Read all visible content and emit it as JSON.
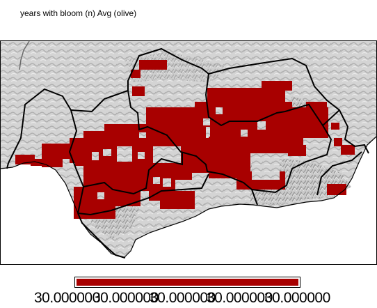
{
  "title": "years with bloom (n) Avg (olive)",
  "colors": {
    "bloom": "#a80000",
    "relief_light": "#d9d9d9",
    "relief_dark": "#9c9c9c",
    "sea": "#ffffff",
    "border": "#000000"
  },
  "legend": {
    "labels": [
      "30.000000",
      "30.000000",
      "30.000000",
      "30.000000",
      "30.000000"
    ]
  }
}
